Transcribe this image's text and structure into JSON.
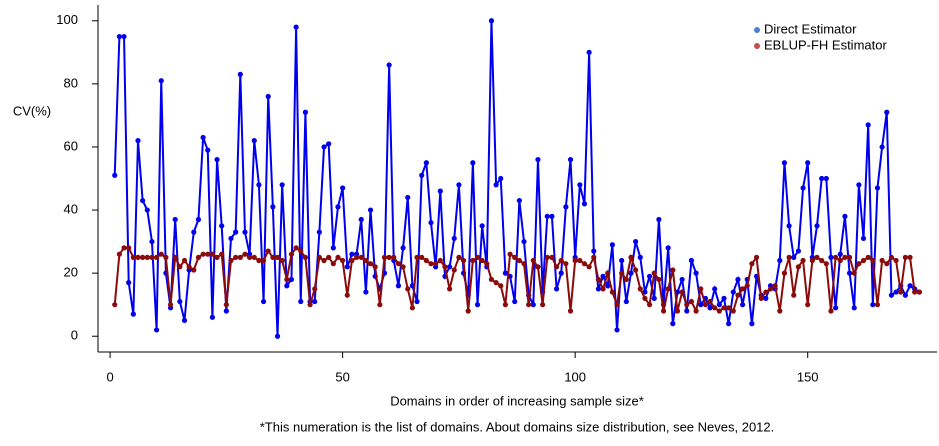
{
  "chart_data": {
    "type": "line",
    "ylabel": "CV(%)",
    "xlabel": "Domains in order of increasing sample size*",
    "caption": "*This numeration is the list of domains.  About domains size distribution, see Neves, 2012.",
    "x": [
      1,
      2,
      3,
      4,
      5,
      6,
      7,
      8,
      9,
      10,
      11,
      12,
      13,
      14,
      15,
      16,
      17,
      18,
      19,
      20,
      21,
      22,
      23,
      24,
      25,
      26,
      27,
      28,
      29,
      30,
      31,
      32,
      33,
      34,
      35,
      36,
      37,
      38,
      39,
      40,
      41,
      42,
      43,
      44,
      45,
      46,
      47,
      48,
      49,
      50,
      51,
      52,
      53,
      54,
      55,
      56,
      57,
      58,
      59,
      60,
      61,
      62,
      63,
      64,
      65,
      66,
      67,
      68,
      69,
      70,
      71,
      72,
      73,
      74,
      75,
      76,
      77,
      78,
      79,
      80,
      81,
      82,
      83,
      84,
      85,
      86,
      87,
      88,
      89,
      90,
      91,
      92,
      93,
      94,
      95,
      96,
      97,
      98,
      99,
      100,
      101,
      102,
      103,
      104,
      105,
      106,
      107,
      108,
      109,
      110,
      111,
      112,
      113,
      114,
      115,
      116,
      117,
      118,
      119,
      120,
      121,
      122,
      123,
      124,
      125,
      126,
      127,
      128,
      129,
      130,
      131,
      132,
      133,
      134,
      135,
      136,
      137,
      138,
      139,
      140,
      141,
      142,
      143,
      144,
      145,
      146,
      147,
      148,
      149,
      150,
      151,
      152,
      153,
      154,
      155,
      156,
      157,
      158,
      159,
      160,
      161,
      162,
      163,
      164,
      165,
      166,
      167,
      168,
      169,
      170,
      171,
      172,
      173,
      174
    ],
    "series": [
      {
        "name": "Direct Estimator",
        "color": "#0000ee",
        "legend_color": "#4a7fd4",
        "values": [
          51,
          95,
          95,
          17,
          7,
          62,
          43,
          40,
          30,
          2,
          81,
          20,
          9,
          37,
          11,
          5,
          21,
          33,
          37,
          63,
          59,
          6,
          56,
          35,
          8,
          31,
          33,
          83,
          33,
          26,
          62,
          48,
          11,
          76,
          41,
          0,
          48,
          16,
          18,
          98,
          11,
          71,
          11,
          11,
          33,
          60,
          61,
          28,
          41,
          47,
          22,
          26,
          26,
          37,
          14,
          40,
          19,
          15,
          20,
          86,
          24,
          16,
          28,
          44,
          16,
          11,
          51,
          55,
          36,
          22,
          46,
          19,
          22,
          31,
          48,
          20,
          13,
          55,
          10,
          35,
          22,
          100,
          48,
          50,
          20,
          19,
          11,
          43,
          30,
          13,
          10,
          56,
          14,
          38,
          38,
          15,
          20,
          41,
          56,
          25,
          48,
          42,
          90,
          27,
          15,
          19,
          16,
          29,
          2,
          24,
          11,
          20,
          30,
          25,
          14,
          19,
          12,
          37,
          10,
          28,
          4,
          14,
          18,
          8,
          24,
          20,
          10,
          12,
          9,
          15,
          10,
          12,
          4,
          14,
          18,
          10,
          18,
          4,
          19,
          13,
          12,
          16,
          15,
          24,
          55,
          35,
          25,
          27,
          47,
          55,
          25,
          35,
          50,
          50,
          25,
          9,
          26,
          38,
          20,
          9,
          48,
          31,
          67,
          10,
          47,
          60,
          71,
          13,
          14,
          16,
          13,
          16,
          15,
          14
        ]
      },
      {
        "name": "EBLUP-FH Estimator",
        "color": "#8b0a0a",
        "legend_color": "#c0504d",
        "values": [
          10,
          26,
          28,
          28,
          25,
          25,
          25,
          25,
          25,
          25,
          26,
          25,
          10,
          25,
          22,
          24,
          22,
          21,
          25,
          26,
          26,
          26,
          25,
          26,
          10,
          24,
          25,
          25,
          26,
          25,
          25,
          24,
          24,
          27,
          25,
          25,
          24,
          18,
          26,
          28,
          27,
          25,
          10,
          15,
          25,
          24,
          25,
          23,
          25,
          24,
          13,
          24,
          25,
          25,
          24,
          23,
          22,
          10,
          25,
          25,
          25,
          23,
          22,
          15,
          9,
          25,
          25,
          24,
          23,
          23,
          24,
          22,
          15,
          21,
          25,
          24,
          8,
          24,
          25,
          24,
          23,
          18,
          17,
          16,
          10,
          26,
          25,
          24,
          23,
          10,
          24,
          22,
          10,
          25,
          25,
          22,
          24,
          23,
          8,
          24,
          24,
          23,
          22,
          25,
          18,
          15,
          20,
          14,
          10,
          20,
          18,
          25,
          21,
          15,
          12,
          10,
          20,
          18,
          8,
          15,
          21,
          8,
          14,
          10,
          11,
          8,
          15,
          10,
          11,
          9,
          8,
          9,
          9,
          8,
          13,
          15,
          16,
          23,
          25,
          12,
          14,
          15,
          16,
          8,
          20,
          25,
          13,
          22,
          24,
          10,
          24,
          25,
          24,
          23,
          8,
          25,
          24,
          25,
          25,
          20,
          23,
          24,
          25,
          24,
          10,
          24,
          23,
          25,
          24,
          14,
          25,
          25,
          14,
          14
        ]
      }
    ],
    "xlim": [
      -2.6,
      177.8
    ],
    "ylim": [
      -5,
      105
    ],
    "xticks": [
      0,
      50,
      100,
      150
    ],
    "yticks": [
      0,
      20,
      40,
      60,
      80,
      100
    ],
    "legend": "upper right"
  }
}
